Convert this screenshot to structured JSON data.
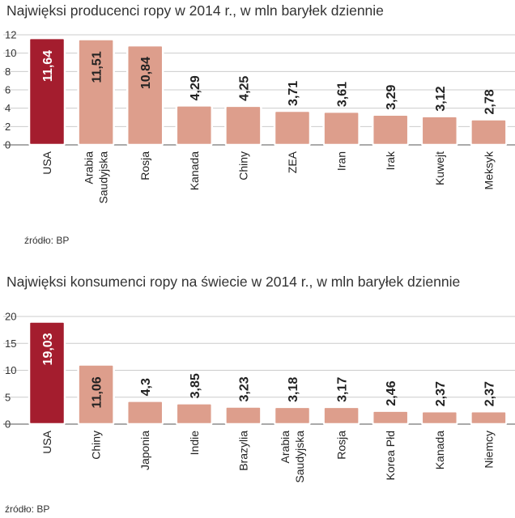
{
  "colors": {
    "highlight": "#a41d2e",
    "bar": "#dd9e8c",
    "bar_outline": "#ffffff",
    "grid": "#cccccc",
    "axis": "#555555"
  },
  "chart_data": [
    {
      "type": "bar",
      "title": "Najwięksi producenci ropy w 2014 r., w mln baryłek dziennie",
      "source": "źródło: BP",
      "categories": [
        [
          "USA"
        ],
        [
          "Arabia",
          "Saudyjska"
        ],
        [
          "Rosja"
        ],
        [
          "Kanada"
        ],
        [
          "Chiny"
        ],
        [
          "ZEA"
        ],
        [
          "Iran"
        ],
        [
          "Irak"
        ],
        [
          "Kuwejt"
        ],
        [
          "Meksyk"
        ]
      ],
      "values": [
        11.64,
        11.51,
        10.84,
        4.29,
        4.25,
        3.71,
        3.61,
        3.29,
        3.12,
        2.78
      ],
      "value_labels": [
        "11,64",
        "11,51",
        "10,84",
        "4,29",
        "4,25",
        "3,71",
        "3,61",
        "3,29",
        "3,12",
        "2,78"
      ],
      "highlight_index": 0,
      "ylim": [
        0,
        12
      ],
      "yticks": [
        0,
        2,
        4,
        6,
        8,
        10,
        12
      ],
      "grid": true
    },
    {
      "type": "bar",
      "title": "Najwięksi konsumenci ropy na świecie w 2014 r., w mln baryłek dziennie",
      "source": "źródło: BP",
      "categories": [
        [
          "USA"
        ],
        [
          "Chiny"
        ],
        [
          "Japonia"
        ],
        [
          "Indie"
        ],
        [
          "Brazylia"
        ],
        [
          "Arabia",
          "Saudyjska"
        ],
        [
          "Rosja"
        ],
        [
          "Korea Płd"
        ],
        [
          "Kanada"
        ],
        [
          "Niemcy"
        ]
      ],
      "values": [
        19.03,
        11.06,
        4.3,
        3.85,
        3.23,
        3.18,
        3.17,
        2.46,
        2.37,
        2.37
      ],
      "value_labels": [
        "19,03",
        "11,06",
        "4,3",
        "3,85",
        "3,23",
        "3,18",
        "3,17",
        "2,46",
        "2,37",
        "2,37"
      ],
      "highlight_index": 0,
      "ylim": [
        0,
        20
      ],
      "yticks": [
        0,
        5,
        10,
        15,
        20
      ],
      "grid": true
    }
  ]
}
